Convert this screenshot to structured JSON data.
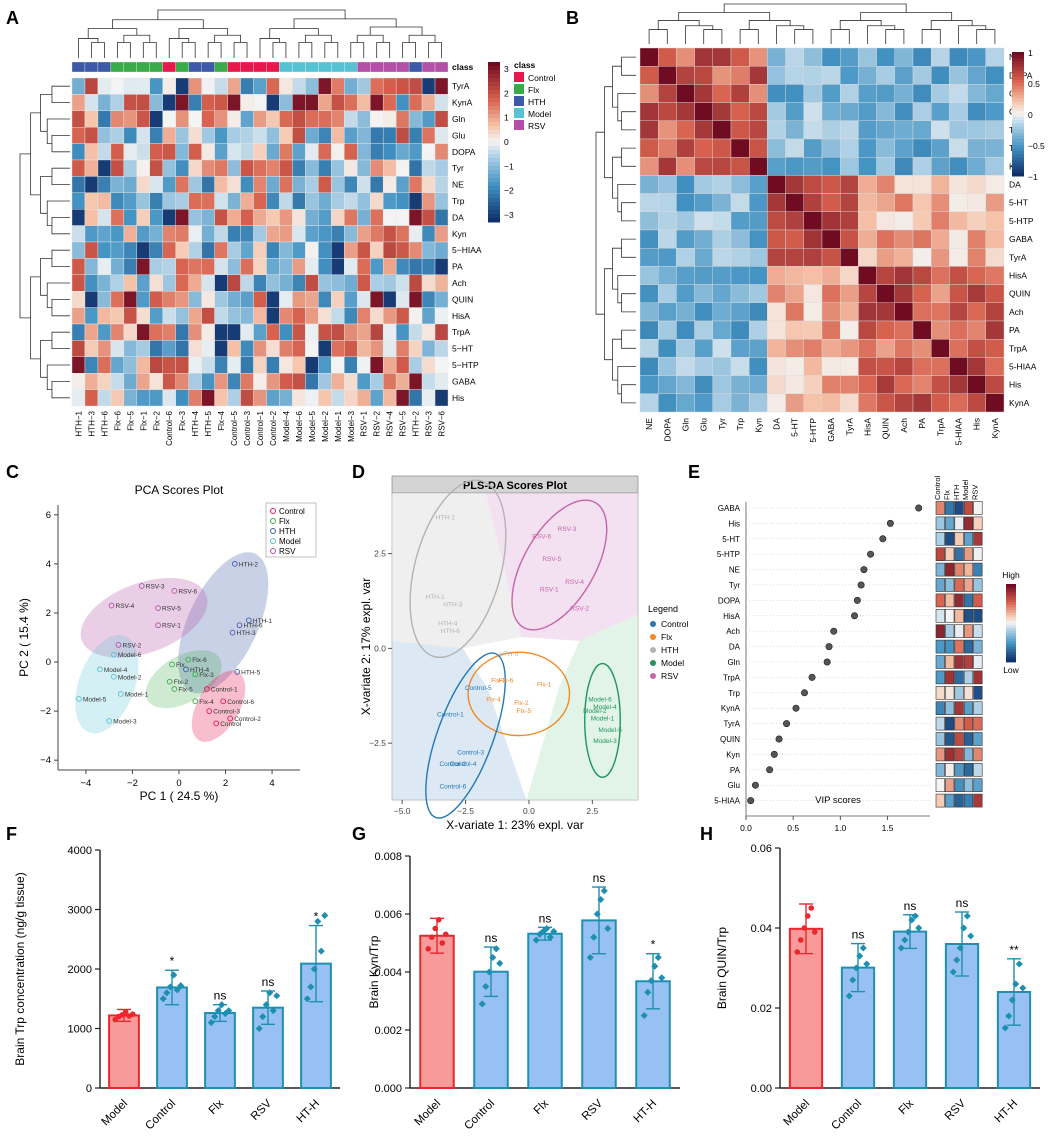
{
  "panels": {
    "A": {
      "letter": "A"
    },
    "B": {
      "letter": "B"
    },
    "C": {
      "letter": "C"
    },
    "D": {
      "letter": "D"
    },
    "E": {
      "letter": "E"
    },
    "F": {
      "letter": "F"
    },
    "G": {
      "letter": "G"
    },
    "H": {
      "letter": "H"
    }
  },
  "colors": {
    "Control": "#e8174d",
    "Flx": "#3aab49",
    "HTH": "#3c5aa8",
    "Model": "#56c3d4",
    "RSV": "#b34fa6",
    "red_fill": "#f99a9a",
    "red_edge": "#e8282c",
    "blue_fill": "#96c1f2",
    "blue_edge": "#1e8fb0"
  },
  "chart_data": [
    {
      "id": "A",
      "type": "heatmap",
      "title": "",
      "class_label": "class",
      "legend_title": "class",
      "legend_entries": [
        "Control",
        "Flx",
        "HTH",
        "Model",
        "RSV"
      ],
      "colorbar_ticks": [
        "3",
        "2",
        "1",
        "0",
        "−1",
        "−2",
        "−3"
      ],
      "columns": [
        "HTH−1",
        "HTH−3",
        "HTH−6",
        "Flx−6",
        "Flx−5",
        "Flx−1",
        "Flx−2",
        "Control−6",
        "Flx−3",
        "HTH−4",
        "HTH−5",
        "Flx−4",
        "Control−5",
        "Control−3",
        "Control−1",
        "Control−2",
        "Model−4",
        "Model−6",
        "Model−5",
        "Model−2",
        "Model−1",
        "Model−3",
        "RSV−1",
        "RSV−2",
        "RSV−4",
        "RSV−5",
        "HTH−2",
        "RSV−3",
        "RSV−6"
      ],
      "column_classes": [
        "HTH",
        "HTH",
        "HTH",
        "Flx",
        "Flx",
        "Flx",
        "Flx",
        "Control",
        "Flx",
        "HTH",
        "HTH",
        "Flx",
        "Control",
        "Control",
        "Control",
        "Control",
        "Model",
        "Model",
        "Model",
        "Model",
        "Model",
        "Model",
        "RSV",
        "RSV",
        "RSV",
        "RSV",
        "HTH",
        "RSV",
        "RSV"
      ],
      "rows": [
        "TyrA",
        "KynA",
        "Gln",
        "Glu",
        "DOPA",
        "Tyr",
        "NE",
        "Trp",
        "DA",
        "Kyn",
        "5−HIAA",
        "PA",
        "Ach",
        "QUIN",
        "HisA",
        "TrpA",
        "5−HT",
        "5−HTP",
        "GABA",
        "His"
      ]
    },
    {
      "id": "B",
      "type": "heatmap",
      "title": "",
      "variables": [
        "NE",
        "DOPA",
        "Gln",
        "Glu",
        "Tyr",
        "Trp",
        "Kyn",
        "DA",
        "5-HT",
        "5-HTP",
        "GABA",
        "TyrA",
        "HisA",
        "QUIN",
        "Ach",
        "PA",
        "TrpA",
        "5-HIAA",
        "His",
        "KynA"
      ],
      "colorbar_ticks": [
        "1",
        "0.5",
        "0",
        "−0.5",
        "−1"
      ]
    },
    {
      "id": "C",
      "type": "scatter",
      "title": "PCA Scores Plot",
      "xlabel": "PC 1 ( 24.5 %)",
      "ylabel": "PC 2 ( 15.4 %)",
      "xlim": [
        -5.2,
        5.2
      ],
      "ylim": [
        -4.4,
        6.4
      ],
      "xticks": [
        "−4",
        "−2",
        "0",
        "2",
        "4"
      ],
      "yticks": [
        "−4",
        "−2",
        "0",
        "2",
        "4",
        "6"
      ],
      "legend": [
        "Control",
        "Flx",
        "HTH",
        "Model",
        "RSV"
      ],
      "points": [
        {
          "label": "HTH-2",
          "group": "HTH",
          "x": 2.4,
          "y": 4.0
        },
        {
          "label": "HTH-1",
          "group": "HTH",
          "x": 3.0,
          "y": 1.7
        },
        {
          "label": "HTH-6",
          "group": "HTH",
          "x": 2.6,
          "y": 1.5
        },
        {
          "label": "HTH-3",
          "group": "HTH",
          "x": 2.3,
          "y": 1.2
        },
        {
          "label": "HTH-5",
          "group": "HTH",
          "x": 2.5,
          "y": -0.4
        },
        {
          "label": "HTH-4",
          "group": "HTH",
          "x": 0.3,
          "y": -0.3
        },
        {
          "label": "RSV-3",
          "group": "RSV",
          "x": -1.6,
          "y": 3.1
        },
        {
          "label": "RSV-6",
          "group": "RSV",
          "x": -0.2,
          "y": 2.9
        },
        {
          "label": "RSV-4",
          "group": "RSV",
          "x": -2.9,
          "y": 2.3
        },
        {
          "label": "RSV-5",
          "group": "RSV",
          "x": -0.9,
          "y": 2.2
        },
        {
          "label": "RSV-1",
          "group": "RSV",
          "x": -0.9,
          "y": 1.5
        },
        {
          "label": "RSV-2",
          "group": "RSV",
          "x": -2.6,
          "y": 0.7
        },
        {
          "label": "Model-6",
          "group": "Model",
          "x": -2.8,
          "y": 0.3
        },
        {
          "label": "Model-4",
          "group": "Model",
          "x": -3.4,
          "y": -0.3
        },
        {
          "label": "Model-2",
          "group": "Model",
          "x": -2.8,
          "y": -0.6
        },
        {
          "label": "Model-1",
          "group": "Model",
          "x": -2.5,
          "y": -1.3
        },
        {
          "label": "Model-5",
          "group": "Model",
          "x": -4.3,
          "y": -1.5
        },
        {
          "label": "Model-3",
          "group": "Model",
          "x": -3.0,
          "y": -2.4
        },
        {
          "label": "Flx-6",
          "group": "Flx",
          "x": 0.4,
          "y": 0.1
        },
        {
          "label": "Flx",
          "group": "Flx",
          "x": -0.3,
          "y": -0.1
        },
        {
          "label": "Flx-3",
          "group": "Flx",
          "x": 0.7,
          "y": -0.5
        },
        {
          "label": "Flx-2",
          "group": "Flx",
          "x": -0.4,
          "y": -0.8
        },
        {
          "label": "Flx-5",
          "group": "Flx",
          "x": -0.2,
          "y": -1.1
        },
        {
          "label": "Flx-4",
          "group": "Flx",
          "x": 0.7,
          "y": -1.6
        },
        {
          "label": "Control-1",
          "group": "Control",
          "x": 1.2,
          "y": -1.1
        },
        {
          "label": "Control-6",
          "group": "Control",
          "x": 1.9,
          "y": -1.6
        },
        {
          "label": "Control-3",
          "group": "Control",
          "x": 1.3,
          "y": -2.0
        },
        {
          "label": "Control-2",
          "group": "Control",
          "x": 2.2,
          "y": -2.3
        },
        {
          "label": "Control",
          "group": "Control",
          "x": 1.6,
          "y": -2.5
        }
      ]
    },
    {
      "id": "D",
      "type": "scatter",
      "title": "PLS-DA Scores Plot",
      "xlabel": "X-variate 1: 23% expl. var",
      "ylabel": "X-variate 2: 17% expl. var",
      "xlim": [
        -5.4,
        4.3
      ],
      "ylim": [
        -4.0,
        4.1
      ],
      "xticks": [
        "−5.0",
        "−2.5",
        "0.0",
        "2.5"
      ],
      "yticks": [
        "−2.5",
        "0.0",
        "2.5"
      ],
      "legend_title": "Legend",
      "legend": [
        "Control",
        "Flx",
        "HTH",
        "Model",
        "RSV"
      ],
      "points": [
        {
          "label": "HTH-2",
          "group": "HTH",
          "x": -3.3,
          "y": 3.4
        },
        {
          "label": "HTH-1",
          "group": "HTH",
          "x": -3.7,
          "y": 1.3
        },
        {
          "label": "HTH-3",
          "group": "HTH",
          "x": -3.0,
          "y": 1.1
        },
        {
          "label": "HTH-4",
          "group": "HTH",
          "x": -3.2,
          "y": 0.6
        },
        {
          "label": "HTH-6",
          "group": "HTH",
          "x": -3.1,
          "y": 0.4
        },
        {
          "label": "HTH-5",
          "group": "HTH",
          "x": -0.8,
          "y": -0.2
        },
        {
          "label": "RSV-3",
          "group": "RSV",
          "x": 1.5,
          "y": 3.1
        },
        {
          "label": "RSV-6",
          "group": "RSV",
          "x": 0.5,
          "y": 2.9
        },
        {
          "label": "RSV-5",
          "group": "RSV",
          "x": 0.9,
          "y": 2.3
        },
        {
          "label": "RSV-4",
          "group": "RSV",
          "x": 1.8,
          "y": 1.7
        },
        {
          "label": "RSV-1",
          "group": "RSV",
          "x": 0.8,
          "y": 1.5
        },
        {
          "label": "RSV-2",
          "group": "RSV",
          "x": 2.0,
          "y": 1.0
        },
        {
          "label": "Flx-6",
          "group": "Flx",
          "x": -0.9,
          "y": -0.9
        },
        {
          "label": "Flx-1",
          "group": "Flx",
          "x": 0.6,
          "y": -1.0
        },
        {
          "label": "Flx-2",
          "group": "Flx",
          "x": -0.3,
          "y": -1.5
        },
        {
          "label": "Flx-3",
          "group": "Flx",
          "x": -1.2,
          "y": -0.9
        },
        {
          "label": "Flx-5",
          "group": "Flx",
          "x": -0.2,
          "y": -1.7
        },
        {
          "label": "Flx-4",
          "group": "Flx",
          "x": -1.4,
          "y": -1.4
        },
        {
          "label": "Model-6",
          "group": "Model",
          "x": 2.8,
          "y": -1.4
        },
        {
          "label": "Model-4",
          "group": "Model",
          "x": 3.0,
          "y": -1.6
        },
        {
          "label": "Model-2",
          "group": "Model",
          "x": 2.6,
          "y": -1.7
        },
        {
          "label": "Model-1",
          "group": "Model",
          "x": 2.9,
          "y": -1.9
        },
        {
          "label": "Model-5",
          "group": "Model",
          "x": 3.2,
          "y": -2.2
        },
        {
          "label": "Model-3",
          "group": "Model",
          "x": 3.0,
          "y": -2.5
        },
        {
          "label": "Control-5",
          "group": "Control",
          "x": -2.0,
          "y": -1.1
        },
        {
          "label": "Control-1",
          "group": "Control",
          "x": -3.1,
          "y": -1.8
        },
        {
          "label": "Control-3",
          "group": "Control",
          "x": -2.3,
          "y": -2.8
        },
        {
          "label": "Control-2",
          "group": "Control",
          "x": -3.0,
          "y": -3.1
        },
        {
          "label": "Control-4",
          "group": "Control",
          "x": -2.6,
          "y": -3.1
        },
        {
          "label": "Control-6",
          "group": "Control",
          "x": -3.0,
          "y": -3.7
        }
      ]
    },
    {
      "id": "E",
      "type": "scatter",
      "title": "",
      "xlabel": "VIP scores",
      "xlim": [
        0,
        1.95
      ],
      "xticks": [
        "0.0",
        "0.5",
        "1.0",
        "1.5"
      ],
      "categories": [
        "GABA",
        "His",
        "5-HT",
        "5-HTP",
        "NE",
        "Tyr",
        "DOPA",
        "HisA",
        "Ach",
        "DA",
        "Gln",
        "TrpA",
        "Trp",
        "KynA",
        "TyrA",
        "QUIN",
        "Kyn",
        "PA",
        "Glu",
        "5-HIAA"
      ],
      "values": [
        1.83,
        1.53,
        1.45,
        1.32,
        1.25,
        1.22,
        1.18,
        1.15,
        0.93,
        0.88,
        0.86,
        0.7,
        0.62,
        0.53,
        0.43,
        0.35,
        0.3,
        0.25,
        0.1,
        0.05
      ],
      "group_columns": [
        "Control",
        "Flx",
        "HTH",
        "Model",
        "RSV"
      ],
      "colorbar_high": "High",
      "colorbar_low": "Low"
    },
    {
      "id": "F",
      "type": "bar",
      "categories": [
        "Model",
        "Control",
        "Flx",
        "RSV",
        "HT-H"
      ],
      "values": [
        1220,
        1690,
        1260,
        1350,
        2090
      ],
      "errors": [
        100,
        290,
        140,
        280,
        640
      ],
      "significance": [
        "",
        "*",
        "ns",
        "ns",
        "*"
      ],
      "ylabel": "Brain Trp concentration (ng/g tissue)",
      "ylim": [
        0,
        4000
      ],
      "yticks": [
        "0",
        "1000",
        "2000",
        "3000",
        "4000"
      ],
      "points": [
        [
          1150,
          1200,
          1230,
          1280,
          1210,
          1240
        ],
        [
          1500,
          1600,
          1700,
          1900,
          1650,
          1720
        ],
        [
          1100,
          1200,
          1300,
          1400,
          1250,
          1300
        ],
        [
          1000,
          1200,
          1400,
          1600,
          1300,
          1550
        ],
        [
          1500,
          1700,
          2000,
          2800,
          2300,
          2900
        ]
      ]
    },
    {
      "id": "G",
      "type": "bar",
      "categories": [
        "Model",
        "Control",
        "Flx",
        "RSV",
        "HT-H"
      ],
      "values": [
        0.00525,
        0.00401,
        0.00532,
        0.00578,
        0.00368
      ],
      "errors": [
        0.0006,
        0.00085,
        0.00022,
        0.00115,
        0.00095
      ],
      "significance": [
        "",
        "ns",
        "ns",
        "ns",
        "*"
      ],
      "ylabel": "Brain Kyn/Trp",
      "ylim": [
        0,
        0.008
      ],
      "yticks": [
        "0.000",
        "0.002",
        "0.004",
        "0.006",
        "0.008"
      ],
      "points": [
        [
          0.0048,
          0.0052,
          0.0055,
          0.0058,
          0.005,
          0.0053
        ],
        [
          0.0029,
          0.0035,
          0.004,
          0.0045,
          0.0048,
          0.0043
        ],
        [
          0.0051,
          0.0053,
          0.0054,
          0.0055,
          0.0052,
          0.0054
        ],
        [
          0.0045,
          0.0052,
          0.006,
          0.0065,
          0.0068,
          0.0055
        ],
        [
          0.0025,
          0.0033,
          0.0037,
          0.0042,
          0.0045,
          0.0038
        ]
      ]
    },
    {
      "id": "H",
      "type": "bar",
      "categories": [
        "Model",
        "Control",
        "Flx",
        "RSV",
        "HT-H"
      ],
      "values": [
        0.0398,
        0.0301,
        0.0391,
        0.036,
        0.024
      ],
      "errors": [
        0.0062,
        0.006,
        0.0042,
        0.008,
        0.0083
      ],
      "significance": [
        "",
        "ns",
        "ns",
        "ns",
        "**"
      ],
      "ylabel": "Brain QUIN/Trp",
      "ylim": [
        0,
        0.06
      ],
      "yticks": [
        "0.00",
        "0.02",
        "0.04",
        "0.06"
      ],
      "points": [
        [
          0.034,
          0.037,
          0.04,
          0.043,
          0.045,
          0.039
        ],
        [
          0.023,
          0.027,
          0.03,
          0.033,
          0.035,
          0.031
        ],
        [
          0.035,
          0.037,
          0.039,
          0.042,
          0.043,
          0.04
        ],
        [
          0.029,
          0.032,
          0.035,
          0.04,
          0.043,
          0.038
        ],
        [
          0.015,
          0.018,
          0.022,
          0.026,
          0.031,
          0.025
        ]
      ]
    }
  ]
}
